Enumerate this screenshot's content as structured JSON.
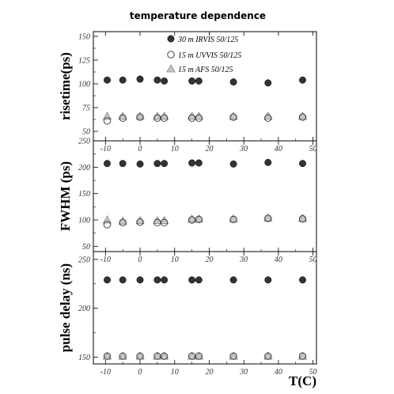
{
  "chart_data": {
    "type": "scatter",
    "title": "temperature dependence",
    "xlabel": "T(C)",
    "xlim": [
      -13.5,
      51
    ],
    "x_ticks": [
      -10,
      0,
      10,
      20,
      30,
      40,
      50
    ],
    "x_tick_labels": [
      "-10",
      "0",
      "10",
      "20",
      "30",
      "40",
      "50"
    ],
    "legend_position": "top-center",
    "legend": [
      {
        "label": "30 m IRVIS 50/125",
        "marker": "filled-circle",
        "color": "#333333"
      },
      {
        "label": "15 m UVVIS 50/125",
        "marker": "open-circle",
        "color": "#333333"
      },
      {
        "label": "15 m AFS 50/125",
        "marker": "triangle",
        "color": "#888888"
      }
    ],
    "x": [
      -9.5,
      -5,
      0,
      5,
      7,
      15,
      17,
      27,
      37,
      47
    ],
    "panels": [
      {
        "ylabel": "risetime(ps)",
        "ylim": [
          40,
          155
        ],
        "y_ticks": [
          50,
          75,
          100,
          125,
          150
        ],
        "y_tick_labels": [
          "50",
          "75",
          "100",
          "125",
          "150"
        ],
        "series": [
          {
            "name": "30 m IRVIS 50/125",
            "values": [
              104,
              104,
              105,
              104,
              103,
              103,
              103,
              102,
              101,
              104
            ]
          },
          {
            "name": "15 m UVVIS 50/125",
            "values": [
              61,
              64,
              65,
              64,
              64,
              64,
              64,
              65,
              64,
              65
            ]
          },
          {
            "name": "15 m AFS 50/125",
            "values": [
              66,
              66,
              66,
              66,
              66,
              66,
              66,
              66,
              66,
              66
            ]
          }
        ]
      },
      {
        "ylabel": "FWHM (ps)",
        "ylim": [
          40,
          250
        ],
        "y_ticks": [
          50,
          100,
          150,
          200,
          250
        ],
        "y_tick_labels": [
          "50",
          "100",
          "150",
          "200",
          "250"
        ],
        "series": [
          {
            "name": "30 m IRVIS 50/125",
            "values": [
              207,
              207,
              206,
              207,
              207,
              208,
              208,
              206,
              209,
              207
            ]
          },
          {
            "name": "15 m UVVIS 50/125",
            "values": [
              91,
              95,
              96,
              95,
              95,
              100,
              101,
              101,
              103,
              102
            ]
          },
          {
            "name": "15 m AFS 50/125",
            "values": [
              100,
              98,
              99,
              99,
              99,
              102,
              102,
              102,
              104,
              103
            ]
          }
        ]
      },
      {
        "ylabel": "pulse delay (ns)",
        "ylim": [
          143,
          258
        ],
        "y_ticks": [
          150,
          200,
          250
        ],
        "y_tick_labels": [
          "150",
          "200",
          "250"
        ],
        "series": [
          {
            "name": "30 m IRVIS 50/125",
            "values": [
              229,
              229,
              229,
              229,
              229,
              229,
              229,
              229,
              229,
              229
            ]
          },
          {
            "name": "15 m UVVIS 50/125",
            "values": [
              151,
              151,
              151,
              151,
              151,
              151,
              151,
              151,
              151,
              151
            ]
          },
          {
            "name": "15 m AFS 50/125",
            "values": [
              151,
              151,
              151,
              151,
              151,
              151,
              151,
              151,
              151,
              151
            ]
          }
        ]
      }
    ]
  }
}
